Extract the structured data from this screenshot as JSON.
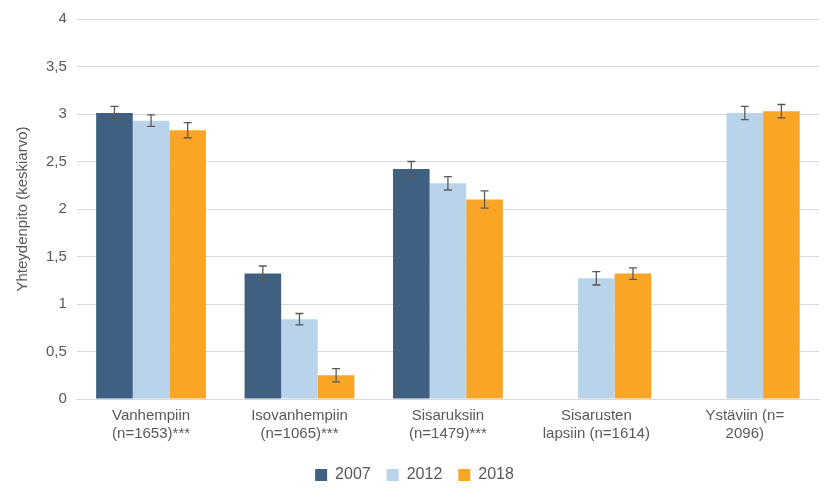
{
  "chart_data": {
    "type": "bar",
    "y_label": "Yhteydenpito (keskiarvo)",
    "categories": [
      [
        "Vanhempiin",
        "(n=1653)***"
      ],
      [
        "Isovanhempiin",
        "(n=1065)***"
      ],
      [
        "Sisaruksiin",
        "(n=1479)***"
      ],
      [
        "Sisarusten",
        "lapsiin (n=1614)"
      ],
      [
        "Ystäviin (n=",
        "2096)"
      ]
    ],
    "series": [
      {
        "name": "2007",
        "color": "#3f6080",
        "values": [
          3.01,
          1.32,
          2.42,
          null,
          null
        ],
        "errors": [
          0.07,
          0.08,
          0.08,
          null,
          null
        ]
      },
      {
        "name": "2012",
        "color": "#b9d4ea",
        "values": [
          2.93,
          0.84,
          2.27,
          1.27,
          3.01
        ],
        "errors": [
          0.06,
          0.06,
          0.07,
          0.07,
          0.07
        ]
      },
      {
        "name": "2018",
        "color": "#fba526",
        "values": [
          2.83,
          0.25,
          2.1,
          1.32,
          3.03
        ],
        "errors": [
          0.08,
          0.07,
          0.09,
          0.06,
          0.07
        ]
      }
    ],
    "ylim": [
      0,
      4
    ],
    "yticks": [
      0,
      {
        "value": 0.5,
        "label": "0,5"
      },
      1,
      {
        "value": 1.5,
        "label": "1,5"
      },
      2,
      {
        "value": 2.5,
        "label": "2,5"
      },
      3,
      {
        "value": 3.5,
        "label": "3,5"
      },
      4
    ],
    "grid": true,
    "legend": "bottom"
  }
}
